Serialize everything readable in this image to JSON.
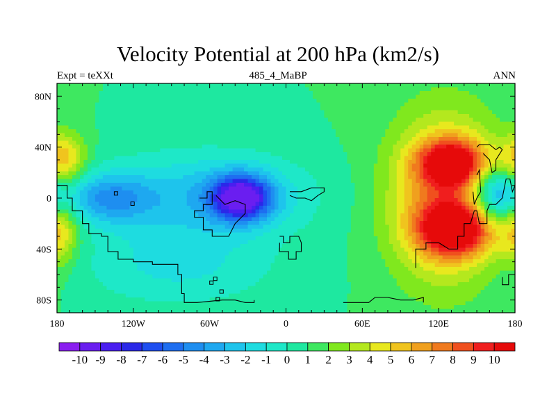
{
  "chart_data": {
    "type": "heatmap",
    "title": "Velocity Potential at 200 hPa (km2/s)",
    "left_label": "Expt = teXXt",
    "center_label": "485_4_MaBP",
    "right_label": "ANN",
    "x_range": [
      -180,
      180
    ],
    "y_range": [
      -90,
      90
    ],
    "x_ticks": [
      {
        "value": -180,
        "label": "180"
      },
      {
        "value": -120,
        "label": "120W"
      },
      {
        "value": -60,
        "label": "60W"
      },
      {
        "value": 0,
        "label": "0"
      },
      {
        "value": 60,
        "label": "60E"
      },
      {
        "value": 120,
        "label": "120E"
      },
      {
        "value": 180,
        "label": "180"
      }
    ],
    "y_ticks": [
      {
        "value": 80,
        "label": "80N"
      },
      {
        "value": 40,
        "label": "40N"
      },
      {
        "value": 0,
        "label": "0"
      },
      {
        "value": -40,
        "label": "40S"
      },
      {
        "value": -80,
        "label": "80S"
      }
    ],
    "colorbar": {
      "levels": [
        -10,
        -9,
        -8,
        -7,
        -6,
        -5,
        -4,
        -3,
        -2,
        -1,
        0,
        1,
        2,
        3,
        4,
        5,
        6,
        7,
        8,
        9,
        10
      ],
      "labels": [
        "-10",
        "-9",
        "-8",
        "-7",
        "-6",
        "-5",
        "-4",
        "-3",
        "-2",
        "-1",
        "0",
        "1",
        "2",
        "3",
        "4",
        "5",
        "6",
        "7",
        "8",
        "9",
        "10"
      ],
      "colors": [
        "#8a1ef0",
        "#6a1ef0",
        "#4a1ef0",
        "#2a28e8",
        "#1e4ef0",
        "#1e6ef0",
        "#1e8ef0",
        "#1ea8f0",
        "#1ec4ec",
        "#1edce0",
        "#1ee8c8",
        "#1ee8a0",
        "#3ee860",
        "#80e81e",
        "#b4e81e",
        "#e8e81e",
        "#f0c41e",
        "#f0a01e",
        "#f07a1e",
        "#f0501e",
        "#f01e1e",
        "#e60a0a"
      ]
    },
    "field_centers": [
      {
        "lon": 130,
        "lat": 28,
        "value": 8.2,
        "slon": 18,
        "slat": 12
      },
      {
        "lon": 133,
        "lat": -25,
        "value": 8.5,
        "slon": 20,
        "slat": 14
      },
      {
        "lon": 125,
        "lat": 0,
        "value": 6.5,
        "slon": 30,
        "slat": 45
      },
      {
        "lon": 165,
        "lat": 2,
        "value": -6.0,
        "slon": 14,
        "slat": 16
      },
      {
        "lon": -35,
        "lat": 0,
        "value": -9.8,
        "slon": 16,
        "slat": 12
      },
      {
        "lon": -40,
        "lat": 2,
        "value": -3.0,
        "slon": 45,
        "slat": 22
      },
      {
        "lon": -140,
        "lat": 0,
        "value": -4.5,
        "slon": 25,
        "slat": 14
      },
      {
        "lon": -95,
        "lat": -2,
        "value": -1.5,
        "slon": 45,
        "slat": 30
      },
      {
        "lon": -85,
        "lat": -55,
        "value": -2.0,
        "slon": 55,
        "slat": 22
      },
      {
        "lon": -175,
        "lat": 30,
        "value": 4.5,
        "slon": 12,
        "slat": 14
      },
      {
        "lon": -178,
        "lat": -25,
        "value": 4.0,
        "slon": 10,
        "slat": 18
      }
    ],
    "field_background": 1.0,
    "clip_min": -10,
    "clip_max": 10
  }
}
